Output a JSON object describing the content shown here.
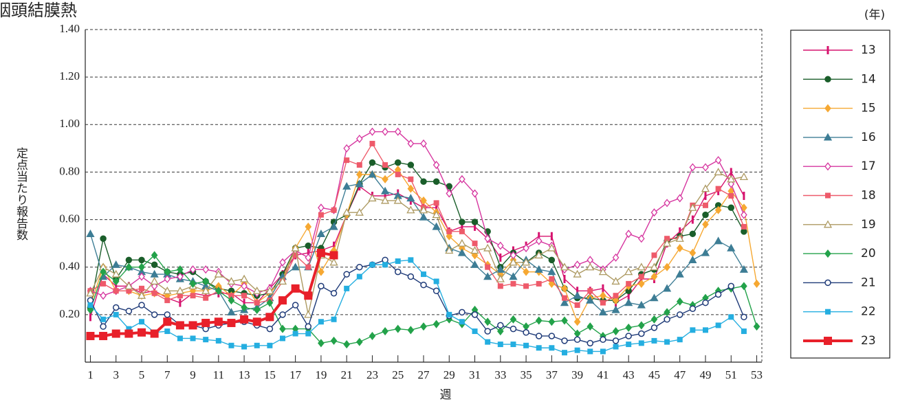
{
  "chart_data": {
    "type": "line",
    "title": "咽頭結膜熱",
    "y_label": "定点当たり報告数",
    "x_label": "週",
    "legend_title": "(年)",
    "x": [
      1,
      2,
      3,
      4,
      5,
      6,
      7,
      8,
      9,
      10,
      11,
      12,
      13,
      14,
      15,
      16,
      17,
      18,
      19,
      20,
      21,
      22,
      23,
      24,
      25,
      26,
      27,
      28,
      29,
      30,
      31,
      32,
      33,
      34,
      35,
      36,
      37,
      38,
      39,
      40,
      41,
      42,
      43,
      44,
      45,
      46,
      47,
      48,
      49,
      50,
      51,
      52,
      53
    ],
    "xlim": [
      0.6,
      53.4
    ],
    "xticks": [
      1,
      3,
      5,
      7,
      9,
      11,
      13,
      15,
      17,
      19,
      21,
      23,
      25,
      27,
      29,
      31,
      33,
      35,
      37,
      39,
      41,
      43,
      45,
      47,
      49,
      51,
      53
    ],
    "ylim": [
      0,
      1.4
    ],
    "yticks": [
      {
        "value": 0.2,
        "label": "0.20"
      },
      {
        "value": 0.4,
        "label": "0.40"
      },
      {
        "value": 0.6,
        "label": "0.60"
      },
      {
        "value": 0.8,
        "label": "0.80"
      },
      {
        "value": 1.0,
        "label": "1.00"
      },
      {
        "value": 1.2,
        "label": "1.20"
      },
      {
        "value": 1.4,
        "label": "1.40"
      }
    ],
    "grid": true,
    "legend": "right",
    "series": [
      {
        "name": "13",
        "color": "#d6136e",
        "marker": "bar",
        "line_width": 1.4,
        "values": [
          0.19,
          0.37,
          0.32,
          0.32,
          0.29,
          0.3,
          0.27,
          0.25,
          0.29,
          0.28,
          0.29,
          0.29,
          0.25,
          0.25,
          0.31,
          0.37,
          0.45,
          0.46,
          0.47,
          0.49,
          0.62,
          0.74,
          0.7,
          0.7,
          0.71,
          0.68,
          0.65,
          0.65,
          0.55,
          0.57,
          0.57,
          0.52,
          0.44,
          0.47,
          0.49,
          0.53,
          0.53,
          0.35,
          0.3,
          0.3,
          0.31,
          0.25,
          0.28,
          0.35,
          0.35,
          0.5,
          0.55,
          0.6,
          0.7,
          0.72,
          0.8,
          0.7,
          null
        ]
      },
      {
        "name": "14",
        "color": "#1a5e2a",
        "marker": "circle",
        "line_width": 1.4,
        "values": [
          0.23,
          0.52,
          0.35,
          0.43,
          0.43,
          0.41,
          0.38,
          0.37,
          0.38,
          0.34,
          0.31,
          0.3,
          0.29,
          0.28,
          0.29,
          0.37,
          0.48,
          0.49,
          0.48,
          0.59,
          0.62,
          0.75,
          0.84,
          0.82,
          0.84,
          0.83,
          0.76,
          0.76,
          0.74,
          0.59,
          0.59,
          0.55,
          0.4,
          0.46,
          0.42,
          0.46,
          0.43,
          0.31,
          0.27,
          0.27,
          0.26,
          0.26,
          0.3,
          0.37,
          0.39,
          0.51,
          0.53,
          0.54,
          0.62,
          0.66,
          0.65,
          0.55,
          null
        ]
      },
      {
        "name": "15",
        "color": "#f6a832",
        "marker": "diamond",
        "line_width": 1.4,
        "values": [
          0.24,
          0.4,
          0.3,
          0.3,
          0.28,
          0.29,
          0.28,
          0.29,
          0.3,
          0.3,
          0.32,
          0.28,
          0.33,
          0.25,
          0.29,
          0.35,
          0.48,
          0.57,
          0.38,
          0.47,
          0.62,
          0.79,
          0.79,
          0.77,
          0.81,
          0.73,
          0.68,
          0.63,
          0.53,
          0.48,
          0.45,
          0.41,
          0.37,
          0.43,
          0.38,
          0.38,
          0.33,
          0.31,
          0.17,
          0.27,
          0.28,
          0.26,
          0.32,
          0.33,
          0.36,
          0.4,
          0.48,
          0.46,
          0.58,
          0.64,
          0.72,
          0.65,
          0.33
        ]
      },
      {
        "name": "16",
        "color": "#3d7d95",
        "marker": "triangle",
        "line_width": 1.4,
        "values": [
          0.54,
          0.36,
          0.41,
          0.4,
          0.38,
          0.37,
          0.37,
          0.35,
          0.34,
          0.32,
          0.3,
          0.21,
          0.22,
          0.23,
          0.27,
          0.36,
          0.4,
          0.4,
          0.54,
          0.57,
          0.74,
          0.75,
          0.79,
          0.72,
          0.7,
          0.69,
          0.61,
          0.57,
          0.48,
          0.46,
          0.41,
          0.36,
          0.39,
          0.36,
          0.43,
          0.39,
          0.38,
          0.25,
          0.28,
          0.26,
          0.21,
          0.22,
          0.25,
          0.24,
          0.27,
          0.31,
          0.37,
          0.43,
          0.46,
          0.51,
          0.48,
          0.39,
          null
        ]
      },
      {
        "name": "17",
        "color": "#d6359f",
        "marker": "diamond-open",
        "line_width": 1.4,
        "values": [
          0.3,
          0.28,
          0.3,
          0.32,
          0.36,
          0.32,
          0.35,
          0.36,
          0.39,
          0.39,
          0.38,
          0.33,
          0.32,
          0.29,
          0.31,
          0.42,
          0.47,
          0.44,
          0.65,
          0.64,
          0.9,
          0.94,
          0.97,
          0.97,
          0.97,
          0.92,
          0.92,
          0.83,
          0.71,
          0.77,
          0.71,
          0.52,
          0.49,
          0.45,
          0.48,
          0.51,
          0.49,
          0.39,
          0.41,
          0.43,
          0.39,
          0.44,
          0.54,
          0.52,
          0.63,
          0.67,
          0.69,
          0.82,
          0.82,
          0.85,
          0.75,
          0.62,
          null
        ]
      },
      {
        "name": "18",
        "color": "#ee5a6a",
        "marker": "square",
        "line_width": 1.4,
        "values": [
          0.3,
          0.33,
          0.3,
          0.3,
          0.31,
          0.29,
          0.26,
          0.28,
          0.28,
          0.27,
          0.3,
          0.28,
          0.28,
          0.25,
          0.26,
          0.34,
          0.45,
          0.4,
          0.62,
          0.64,
          0.85,
          0.83,
          0.92,
          0.83,
          0.79,
          0.77,
          0.65,
          0.67,
          0.55,
          0.55,
          0.5,
          0.4,
          0.32,
          0.33,
          0.32,
          0.33,
          0.35,
          0.27,
          0.24,
          0.3,
          0.25,
          0.28,
          0.33,
          0.36,
          0.45,
          0.52,
          0.52,
          0.66,
          0.66,
          0.73,
          0.7,
          0.57,
          null
        ]
      },
      {
        "name": "19",
        "color": "#ad9a62",
        "marker": "triangle-open",
        "line_width": 1.4,
        "values": [
          0.29,
          0.4,
          0.37,
          0.32,
          0.28,
          0.34,
          0.3,
          0.3,
          0.32,
          0.3,
          0.37,
          0.34,
          0.35,
          0.3,
          0.3,
          0.34,
          0.48,
          0.2,
          0.45,
          0.42,
          0.63,
          0.63,
          0.69,
          0.68,
          0.68,
          0.64,
          0.64,
          0.62,
          0.47,
          0.5,
          0.47,
          0.48,
          0.35,
          0.42,
          0.42,
          0.45,
          0.48,
          0.4,
          0.37,
          0.4,
          0.38,
          0.34,
          0.38,
          0.4,
          0.4,
          0.5,
          0.52,
          0.65,
          0.73,
          0.8,
          0.77,
          0.78,
          null
        ]
      },
      {
        "name": "20",
        "color": "#23a24a",
        "marker": "diamond",
        "line_width": 1.4,
        "values": [
          0.22,
          0.38,
          0.34,
          0.4,
          0.4,
          0.45,
          0.38,
          0.39,
          0.33,
          0.34,
          0.3,
          0.26,
          0.23,
          0.22,
          0.25,
          0.14,
          0.14,
          0.14,
          0.08,
          0.09,
          0.075,
          0.085,
          0.11,
          0.13,
          0.14,
          0.135,
          0.15,
          0.16,
          0.18,
          0.16,
          0.22,
          0.17,
          0.13,
          0.18,
          0.15,
          0.175,
          0.17,
          0.175,
          0.12,
          0.15,
          0.11,
          0.13,
          0.145,
          0.155,
          0.18,
          0.21,
          0.255,
          0.24,
          0.27,
          0.3,
          0.31,
          0.32,
          0.15
        ]
      },
      {
        "name": "21",
        "color": "#1e3a78",
        "marker": "circle-open",
        "line_width": 1.4,
        "values": [
          0.26,
          0.15,
          0.23,
          0.215,
          0.24,
          0.2,
          0.2,
          0.155,
          0.155,
          0.14,
          0.155,
          0.165,
          0.17,
          0.155,
          0.14,
          0.2,
          0.24,
          0.15,
          0.32,
          0.29,
          0.37,
          0.4,
          0.41,
          0.43,
          0.38,
          0.36,
          0.325,
          0.3,
          0.195,
          0.21,
          0.2,
          0.13,
          0.155,
          0.14,
          0.125,
          0.11,
          0.11,
          0.09,
          0.095,
          0.08,
          0.095,
          0.09,
          0.11,
          0.12,
          0.145,
          0.18,
          0.2,
          0.225,
          0.25,
          0.285,
          0.32,
          0.19,
          null
        ]
      },
      {
        "name": "22",
        "color": "#24aee0",
        "marker": "square",
        "line_width": 1.4,
        "values": [
          0.24,
          0.18,
          0.2,
          0.14,
          0.17,
          0.125,
          0.13,
          0.1,
          0.1,
          0.095,
          0.09,
          0.07,
          0.065,
          0.07,
          0.07,
          0.1,
          0.12,
          0.12,
          0.17,
          0.18,
          0.31,
          0.36,
          0.41,
          0.41,
          0.425,
          0.43,
          0.37,
          0.34,
          0.2,
          0.17,
          0.13,
          0.085,
          0.075,
          0.075,
          0.07,
          0.06,
          0.06,
          0.04,
          0.05,
          0.045,
          0.045,
          0.065,
          0.075,
          0.08,
          0.09,
          0.085,
          0.095,
          0.135,
          0.135,
          0.155,
          0.19,
          0.13,
          null
        ]
      },
      {
        "name": "23",
        "color": "#e8202a",
        "marker": "square-large",
        "line_width": 4,
        "values": [
          0.11,
          0.11,
          0.12,
          0.12,
          0.125,
          0.12,
          0.17,
          0.155,
          0.155,
          0.165,
          0.17,
          0.165,
          0.18,
          0.17,
          0.19,
          0.26,
          0.31,
          0.28,
          0.46,
          0.45,
          null,
          null,
          null,
          null,
          null,
          null,
          null,
          null,
          null,
          null,
          null,
          null,
          null,
          null,
          null,
          null,
          null,
          null,
          null,
          null,
          null,
          null,
          null,
          null,
          null,
          null,
          null,
          null,
          null,
          null,
          null,
          null,
          null
        ]
      }
    ]
  }
}
